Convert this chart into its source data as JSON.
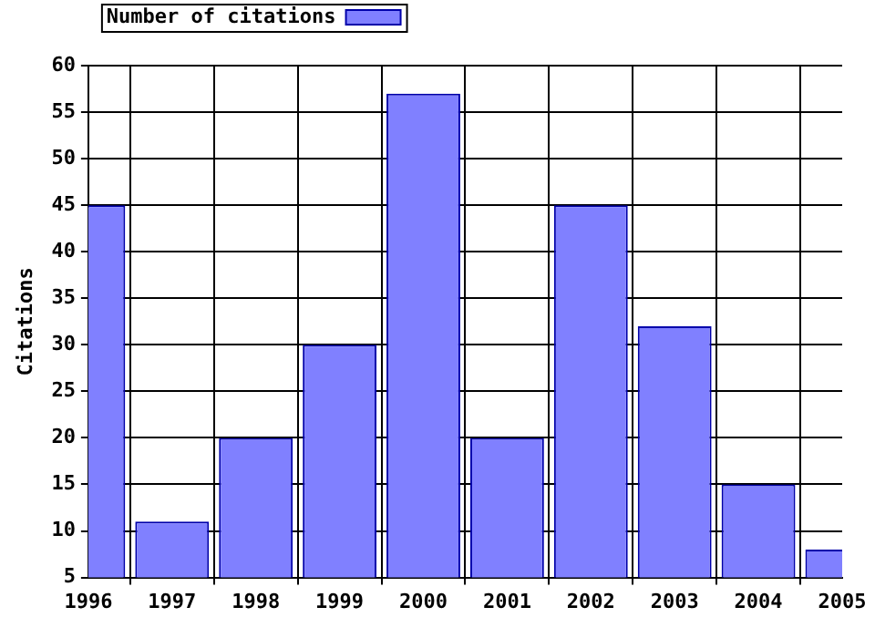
{
  "chart_data": {
    "type": "bar",
    "x": [
      1996,
      1997,
      1998,
      1999,
      2000,
      2001,
      2002,
      2003,
      2004,
      2005
    ],
    "series": [
      {
        "name": "Number of citations",
        "color": "#8080ff",
        "values": [
          45,
          11,
          20,
          30,
          57,
          20,
          45,
          32,
          15,
          8
        ]
      }
    ],
    "ylabel": "Citations",
    "xlim": [
      1996,
      2005
    ],
    "xticks": [
      1996,
      1997,
      1998,
      1999,
      2000,
      2001,
      2002,
      2003,
      2004,
      2005
    ],
    "ylim": [
      5,
      60
    ],
    "yticks": [
      5,
      10,
      15,
      20,
      25,
      30,
      35,
      40,
      45,
      50,
      55,
      60
    ],
    "grid": true,
    "legend": "top left"
  }
}
